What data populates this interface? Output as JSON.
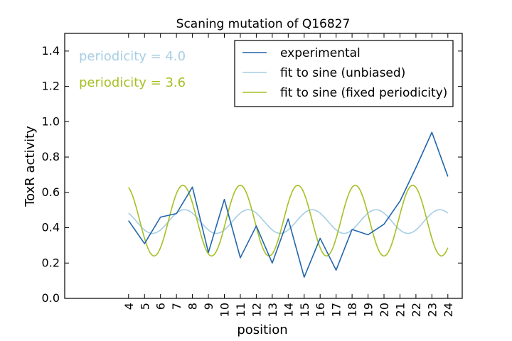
{
  "chart_data": {
    "type": "line",
    "title": "Scaning mutation of Q16827",
    "xlabel": "position",
    "ylabel": "ToxR activity",
    "xlim": [
      0,
      24.9
    ],
    "ylim": [
      0.0,
      1.5
    ],
    "x_ticks": [
      4,
      5,
      6,
      7,
      8,
      9,
      10,
      11,
      12,
      13,
      14,
      15,
      16,
      17,
      18,
      19,
      20,
      21,
      22,
      23,
      24
    ],
    "x_tick_labels": [
      "4",
      "5",
      "6",
      "7",
      "8",
      "9",
      "10",
      "11",
      "12",
      "13",
      "14",
      "15",
      "16",
      "17",
      "18",
      "19",
      "20",
      "21",
      "22",
      "23",
      "24"
    ],
    "y_ticks": [
      0.0,
      0.2,
      0.4,
      0.6,
      0.8,
      1.0,
      1.2,
      1.4
    ],
    "y_tick_labels": [
      "0.0",
      "0.2",
      "0.4",
      "0.6",
      "0.8",
      "1.0",
      "1.2",
      "1.4"
    ],
    "grid": false,
    "legend_position": "top-right",
    "annotations": [
      {
        "text": "periodicity = 4.0",
        "color": "#a6cee3"
      },
      {
        "text": "periodicity = 3.6",
        "color": "#a6c022"
      }
    ],
    "series": [
      {
        "name": "experimental",
        "color": "#2166ac",
        "x": [
          4,
          5,
          6,
          7,
          8,
          9,
          10,
          11,
          12,
          13,
          14,
          15,
          16,
          17,
          18,
          19,
          20,
          21,
          22,
          23,
          24
        ],
        "values": [
          0.44,
          0.31,
          0.46,
          0.48,
          0.63,
          0.26,
          0.56,
          0.23,
          0.41,
          0.2,
          0.45,
          0.12,
          0.34,
          0.16,
          0.39,
          0.36,
          0.42,
          0.55,
          0.74,
          0.94,
          0.69
        ]
      },
      {
        "name": "fit to sine (unbiased)",
        "color": "#a6cee3",
        "x_range": [
          4,
          24
        ],
        "mean": 0.435,
        "amplitude": 0.067,
        "period": 4.0,
        "peak_at": 7.5
      },
      {
        "name": "fit to sine (fixed periodicity)",
        "color": "#a6c022",
        "x_range": [
          4,
          24
        ],
        "mean": 0.44,
        "amplitude": 0.2,
        "period": 3.6,
        "peak_at": 7.4
      }
    ]
  }
}
